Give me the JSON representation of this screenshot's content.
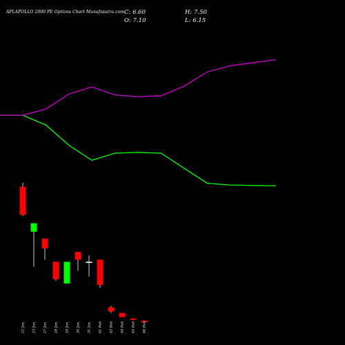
{
  "header": {
    "title": "APLAPOLLO 2000  PE Options Chart Munafasutra.com",
    "close": "C: 6.60",
    "open": "O: 7.10",
    "high": "H: 7.50",
    "low": "L: 6.15"
  },
  "chart_data": [
    {
      "type": "line",
      "categories": [
        "22 Jan",
        "23 Jan",
        "27 Jan",
        "28 Jan",
        "29 Jan",
        "30 Jan",
        "31 Jan",
        "01 Feb",
        "03 Feb",
        "04 Feb",
        "05 Feb",
        "06 Feb"
      ],
      "series": [
        {
          "color": "#00ff00",
          "values": [
            0.0,
            0.0,
            0.11,
            0.34,
            0.51,
            0.43,
            0.42,
            0.43,
            0.6,
            0.77,
            0.79,
            0.8
          ]
        },
        {
          "color": "#cc00cc",
          "values": [
            0.0,
            0.0,
            -0.07,
            -0.24,
            -0.32,
            -0.23,
            -0.21,
            -0.22,
            -0.33,
            -0.49,
            -0.56,
            -0.63
          ]
        }
      ],
      "grid": false
    },
    {
      "type": "candlestick",
      "categories": [
        "22 Jan",
        "23 Jan",
        "27 Jan",
        "28 Jan",
        "29 Jan",
        "30 Jan",
        "31 Jan",
        "01 Feb",
        "03 Feb",
        "04 Feb",
        "05 Feb",
        "06 Feb"
      ],
      "colors": {
        "up": "#00ff00",
        "down": "#ff0000",
        "doji": "#ffffff"
      },
      "ohlc": [
        {
          "open": 57.0,
          "high": 60.0,
          "low": 36.0,
          "close": 37.0
        },
        {
          "open": 25.0,
          "high": 31.0,
          "low": 0.0,
          "close": 31.0
        },
        {
          "open": 20.0,
          "high": 20.0,
          "low": 5.0,
          "close": 13.0
        },
        {
          "open": 3.5,
          "high": 3.5,
          "low": -10.0,
          "close": -9.0
        },
        {
          "open": -12.0,
          "high": 3.5,
          "low": -12.0,
          "close": 3.5
        },
        {
          "open": 10.5,
          "high": 10.5,
          "low": -3.0,
          "close": 5.0
        },
        {
          "open": 3.5,
          "high": 8.0,
          "low": -7.0,
          "close": 3.5
        },
        {
          "open": 5.0,
          "high": 5.0,
          "low": -15.0,
          "close": -13.0
        },
        {
          "open": -29.0,
          "high": -28.0,
          "low": -33.0,
          "close": -32.0
        },
        {
          "open": -33.0,
          "high": -33.0,
          "low": -36.0,
          "close": -36.0
        },
        {
          "open": -37.0,
          "high": -37.0,
          "low": -38.0,
          "close": -38.0
        },
        {
          "open": -38.5,
          "high": -38.5,
          "low": -39.5,
          "close": -39.5
        }
      ]
    }
  ]
}
